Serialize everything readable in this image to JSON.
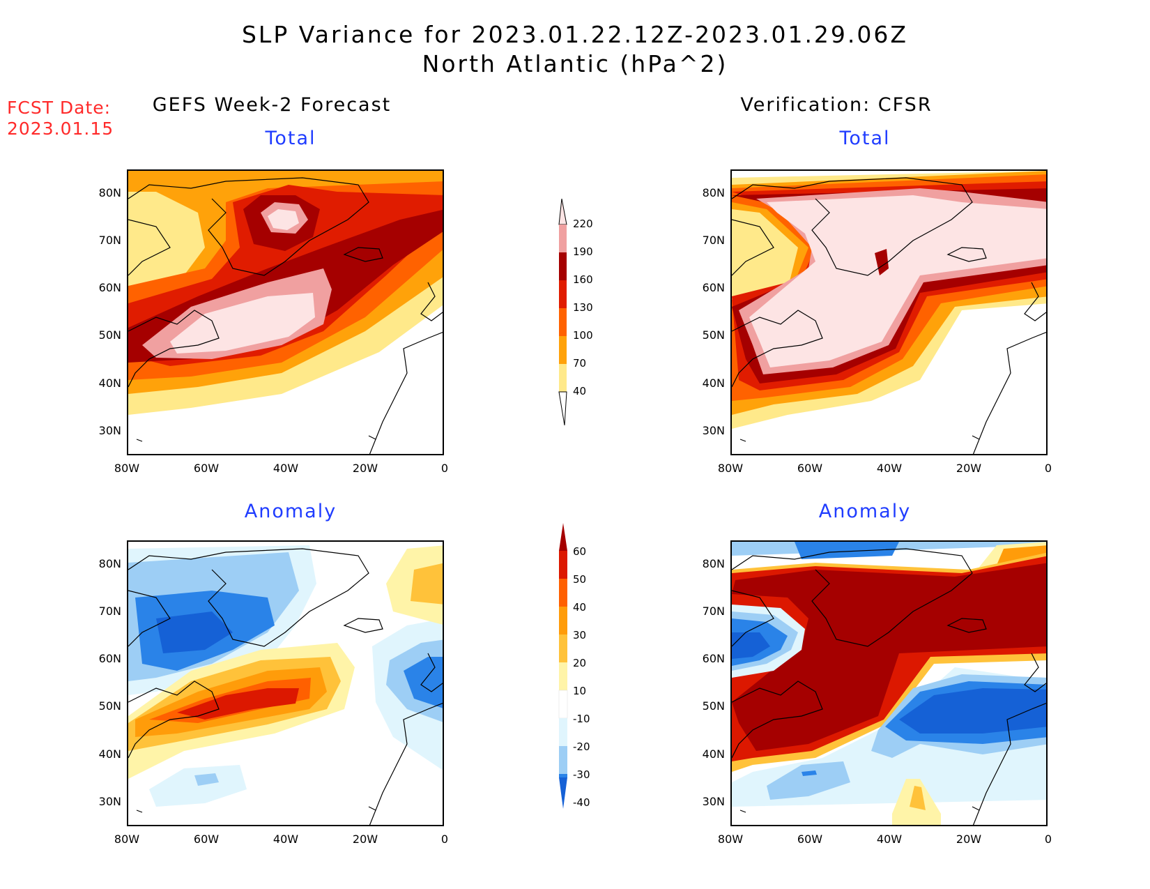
{
  "figure": {
    "title_line1": "SLP Variance for 2023.01.22.12Z-2023.01.29.06Z",
    "title_line2": "North Atlantic (hPa^2)",
    "fcst_label": "FCST Date:",
    "fcst_date": "2023.01.15"
  },
  "columns": {
    "left_heading": "GEFS Week-2 Forecast",
    "right_heading": "Verification: CFSR"
  },
  "panels": {
    "total_label": "Total",
    "anomaly_label": "Anomaly"
  },
  "axes": {
    "lat_ticks": [
      "80N",
      "70N",
      "60N",
      "50N",
      "40N",
      "30N"
    ],
    "lon_ticks": [
      "80W",
      "60W",
      "40W",
      "20W",
      "0"
    ]
  },
  "colorbars": {
    "total": {
      "levels": [
        "40",
        "70",
        "100",
        "130",
        "160",
        "190",
        "220"
      ],
      "colors": [
        "#ffe98a",
        "#ffa20a",
        "#ff6200",
        "#e01c00",
        "#a50000",
        "#f0a0a0",
        "#fde4e4"
      ]
    },
    "anomaly": {
      "levels": [
        "-40",
        "-30",
        "-20",
        "-10",
        "10",
        "20",
        "30",
        "40",
        "50",
        "60"
      ],
      "colors": [
        "#1561d6",
        "#2a83e8",
        "#9dcef5",
        "#e0f5fd",
        "#ffffff",
        "#fff4a8",
        "#ffc23a",
        "#ff9c0a",
        "#ff6000",
        "#dc1800",
        "#a50000"
      ]
    }
  }
}
